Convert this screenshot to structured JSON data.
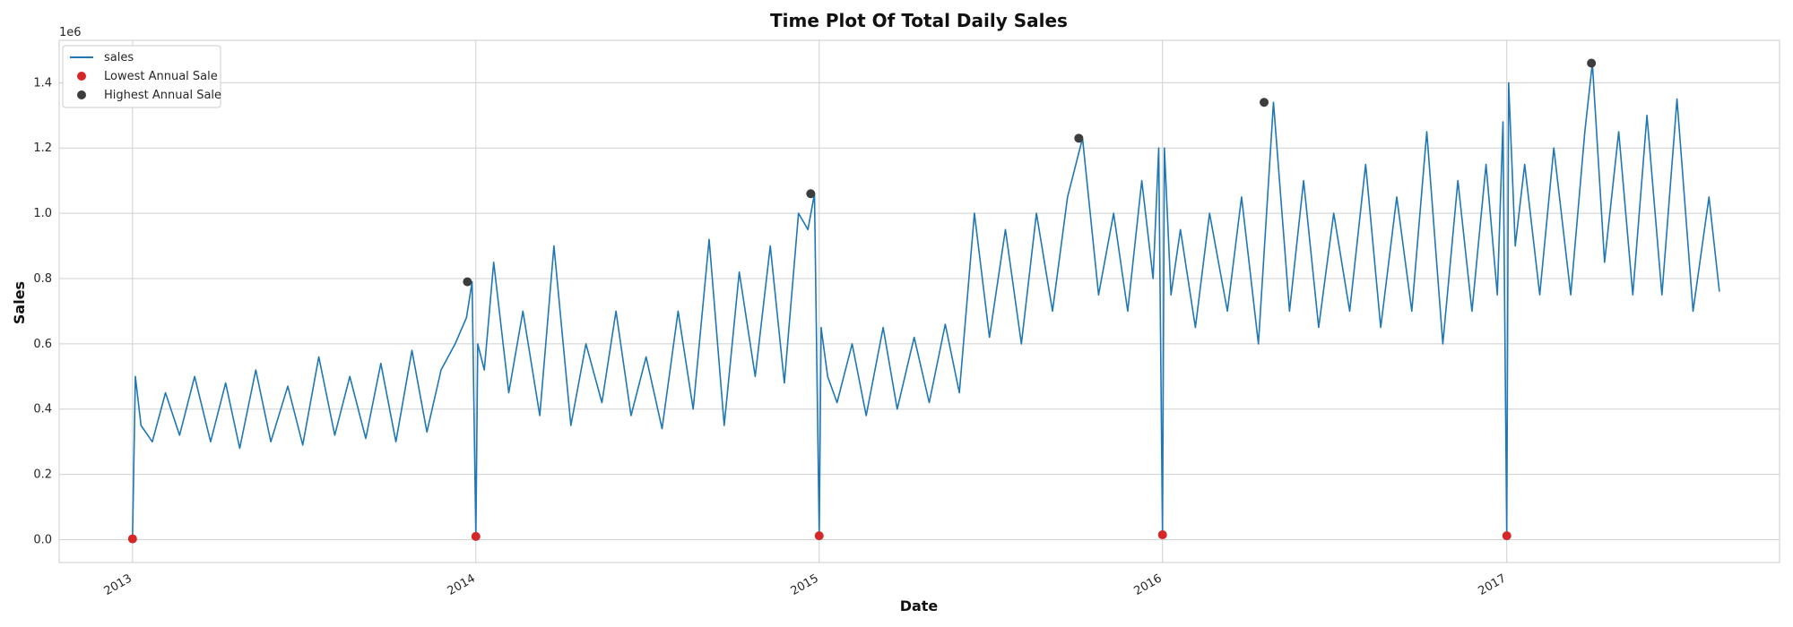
{
  "chart_data": {
    "type": "line",
    "title": "Time Plot Of Total Daily Sales",
    "xlabel": "Date",
    "ylabel": "Sales",
    "y_scale_label": "1e6",
    "x_range": [
      "2012-10-15",
      "2017-10-18"
    ],
    "ylim": [
      -70000,
      1530000
    ],
    "x_ticks": [
      "2013",
      "2014",
      "2015",
      "2016",
      "2017"
    ],
    "x_tick_dates": [
      "2013-01-01",
      "2014-01-01",
      "2015-01-01",
      "2016-01-01",
      "2017-01-01"
    ],
    "y_ticks": [
      "0.0",
      "0.2",
      "0.4",
      "0.6",
      "0.8",
      "1.0",
      "1.2",
      "1.4"
    ],
    "y_tick_values": [
      0,
      200000,
      400000,
      600000,
      800000,
      1000000,
      1200000,
      1400000
    ],
    "grid": true,
    "legend_position": "top-left",
    "colors": {
      "sales": "#1f77b4",
      "lowest": "#d62728",
      "highest": "#3d3d3d",
      "grid": "#d0d0d0",
      "axes_border": "#cccccc"
    },
    "series": [
      {
        "name": "sales",
        "kind": "line",
        "x": [
          "2013-01-01",
          "2013-01-04",
          "2013-01-10",
          "2013-01-22",
          "2013-02-05",
          "2013-02-20",
          "2013-03-08",
          "2013-03-25",
          "2013-04-10",
          "2013-04-25",
          "2013-05-12",
          "2013-05-28",
          "2013-06-15",
          "2013-07-01",
          "2013-07-18",
          "2013-08-04",
          "2013-08-20",
          "2013-09-06",
          "2013-09-22",
          "2013-10-08",
          "2013-10-25",
          "2013-11-10",
          "2013-11-25",
          "2013-12-10",
          "2013-12-22",
          "2013-12-28",
          "2014-01-01",
          "2014-01-03",
          "2014-01-10",
          "2014-01-20",
          "2014-02-05",
          "2014-02-20",
          "2014-03-10",
          "2014-03-25",
          "2014-04-12",
          "2014-04-28",
          "2014-05-15",
          "2014-05-30",
          "2014-06-15",
          "2014-07-01",
          "2014-07-18",
          "2014-08-04",
          "2014-08-20",
          "2014-09-06",
          "2014-09-22",
          "2014-10-08",
          "2014-10-25",
          "2014-11-10",
          "2014-11-25",
          "2014-12-10",
          "2014-12-20",
          "2014-12-27",
          "2015-01-01",
          "2015-01-03",
          "2015-01-10",
          "2015-01-20",
          "2015-02-05",
          "2015-02-20",
          "2015-03-10",
          "2015-03-25",
          "2015-04-12",
          "2015-04-28",
          "2015-05-15",
          "2015-05-30",
          "2015-06-15",
          "2015-07-01",
          "2015-07-18",
          "2015-08-04",
          "2015-08-20",
          "2015-09-06",
          "2015-09-22",
          "2015-10-08",
          "2015-10-25",
          "2015-11-10",
          "2015-11-25",
          "2015-12-10",
          "2015-12-22",
          "2015-12-28",
          "2016-01-01",
          "2016-01-03",
          "2016-01-10",
          "2016-01-20",
          "2016-02-05",
          "2016-02-20",
          "2016-03-10",
          "2016-03-25",
          "2016-04-12",
          "2016-04-28",
          "2016-05-15",
          "2016-05-30",
          "2016-06-15",
          "2016-07-01",
          "2016-07-18",
          "2016-08-04",
          "2016-08-20",
          "2016-09-06",
          "2016-09-22",
          "2016-10-08",
          "2016-10-25",
          "2016-11-10",
          "2016-11-25",
          "2016-12-10",
          "2016-12-22",
          "2016-12-28",
          "2017-01-01",
          "2017-01-03",
          "2017-01-10",
          "2017-01-20",
          "2017-02-05",
          "2017-02-20",
          "2017-03-10",
          "2017-03-25",
          "2017-04-02",
          "2017-04-15",
          "2017-04-30",
          "2017-05-15",
          "2017-05-30",
          "2017-06-15",
          "2017-07-01",
          "2017-07-18",
          "2017-08-04",
          "2017-08-15"
        ],
        "values": [
          2500,
          500000,
          350000,
          300000,
          450000,
          320000,
          500000,
          300000,
          480000,
          280000,
          520000,
          300000,
          470000,
          290000,
          560000,
          320000,
          500000,
          310000,
          540000,
          300000,
          580000,
          330000,
          520000,
          600000,
          680000,
          790000,
          10000,
          600000,
          520000,
          850000,
          450000,
          700000,
          380000,
          900000,
          350000,
          600000,
          420000,
          700000,
          380000,
          560000,
          340000,
          700000,
          400000,
          920000,
          350000,
          820000,
          500000,
          900000,
          480000,
          1000000,
          950000,
          1060000,
          12000,
          650000,
          500000,
          420000,
          600000,
          380000,
          650000,
          400000,
          620000,
          420000,
          660000,
          450000,
          1000000,
          620000,
          950000,
          600000,
          1000000,
          700000,
          1050000,
          1230000,
          750000,
          1000000,
          700000,
          1100000,
          800000,
          1200000,
          15000,
          1200000,
          750000,
          950000,
          650000,
          1000000,
          700000,
          1050000,
          600000,
          1340000,
          700000,
          1100000,
          650000,
          1000000,
          700000,
          1150000,
          650000,
          1050000,
          700000,
          1250000,
          600000,
          1100000,
          700000,
          1150000,
          750000,
          1280000,
          12000,
          1400000,
          900000,
          1150000,
          750000,
          1200000,
          750000,
          1250000,
          1460000,
          850000,
          1250000,
          750000,
          1300000,
          750000,
          1350000,
          700000,
          1050000,
          760000
        ]
      },
      {
        "name": "Lowest Annual Sale",
        "kind": "scatter",
        "x": [
          "2013-01-01",
          "2014-01-01",
          "2015-01-01",
          "2016-01-01",
          "2017-01-01"
        ],
        "values": [
          2500,
          10000,
          12000,
          15000,
          12000
        ]
      },
      {
        "name": "Highest Annual Sale",
        "kind": "scatter",
        "x": [
          "2013-12-23",
          "2014-12-23",
          "2015-10-04",
          "2016-04-18",
          "2017-04-01"
        ],
        "values": [
          790000,
          1060000,
          1230000,
          1340000,
          1460000
        ]
      }
    ]
  }
}
